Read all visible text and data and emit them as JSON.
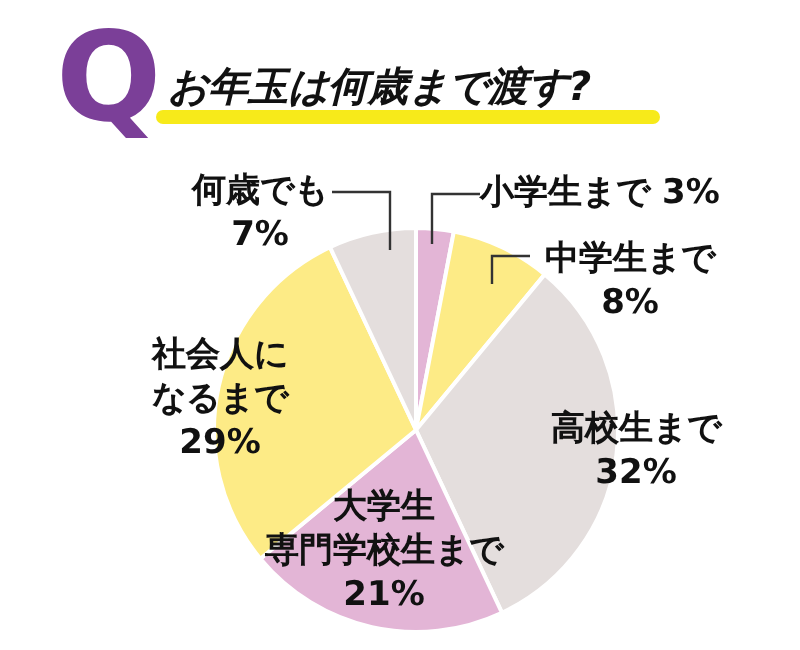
{
  "chart_data": {
    "type": "pie",
    "title": "お年玉は何歳まで渡す?",
    "annotations": [
      "Q"
    ],
    "categories": [
      "小学生まで",
      "中学生まで",
      "高校生まで",
      "大学生専門学校生まで",
      "社会人になるまで",
      "何歳でも"
    ],
    "values": [
      3,
      8,
      32,
      21,
      29,
      7
    ],
    "value_labels": [
      "3%",
      "8%",
      "32%",
      "21%",
      "29%",
      "7%"
    ],
    "colors": [
      "#e3b5d6",
      "#fdeb86",
      "#e4dedd",
      "#e3b5d6",
      "#fdeb86",
      "#e4dedd"
    ],
    "legend": false
  }
}
